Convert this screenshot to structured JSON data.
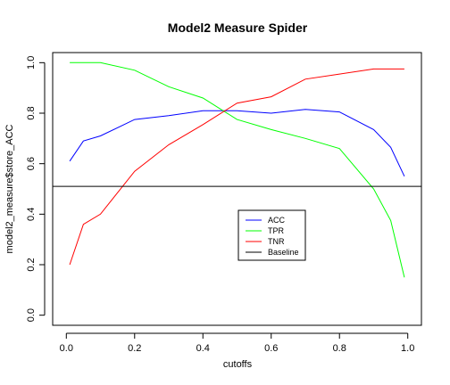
{
  "chart_data": {
    "type": "line",
    "title": "Model2 Measure Spider",
    "xlabel": "cutoffs",
    "ylabel": "model2_measure$store_ACC",
    "xlim": [
      -0.04,
      1.04
    ],
    "ylim": [
      -0.04,
      1.04
    ],
    "xticks": [
      "0.0",
      "0.2",
      "0.4",
      "0.6",
      "0.8",
      "1.0"
    ],
    "yticks": [
      "0.0",
      "0.2",
      "0.4",
      "0.6",
      "0.8",
      "1.0"
    ],
    "x": [
      0.01,
      0.05,
      0.1,
      0.2,
      0.3,
      0.4,
      0.5,
      0.6,
      0.7,
      0.8,
      0.9,
      0.95,
      0.99
    ],
    "series": [
      {
        "name": "ACC",
        "color": "#0000ff",
        "values": [
          0.61,
          0.69,
          0.71,
          0.775,
          0.79,
          0.81,
          0.81,
          0.8,
          0.815,
          0.805,
          0.735,
          0.665,
          0.55
        ]
      },
      {
        "name": "TPR",
        "color": "#00ff00",
        "values": [
          1.0,
          1.0,
          1.0,
          0.97,
          0.905,
          0.86,
          0.775,
          0.735,
          0.7,
          0.66,
          0.5,
          0.375,
          0.15
        ]
      },
      {
        "name": "TNR",
        "color": "#ff0000",
        "values": [
          0.2,
          0.36,
          0.4,
          0.57,
          0.675,
          0.755,
          0.84,
          0.865,
          0.935,
          0.955,
          0.975,
          0.975,
          0.975
        ]
      }
    ],
    "baseline": {
      "name": "Baseline",
      "color": "#000000",
      "y": 0.51
    },
    "legend_position": "center-right",
    "grid": false
  }
}
